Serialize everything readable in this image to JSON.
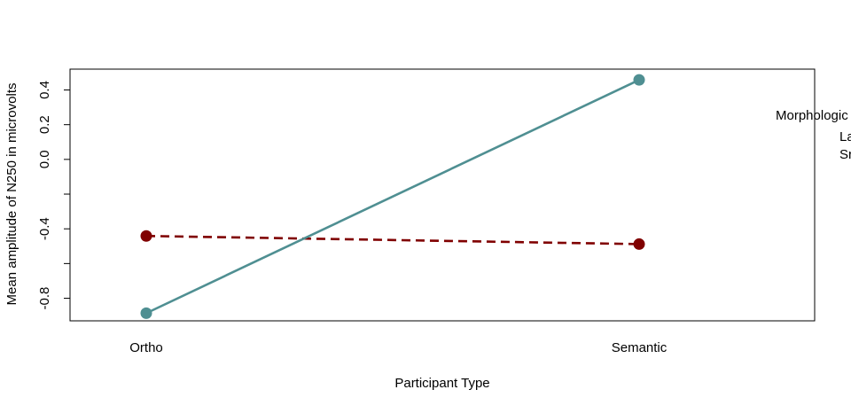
{
  "chart_data": {
    "type": "line",
    "title": "",
    "xlabel": "Participant Type",
    "ylabel": "Mean amplitude of N250 in microvolts",
    "categories": [
      "Ortho",
      "Semantic"
    ],
    "yticks": [
      0.4,
      0.2,
      0.0,
      -0.4,
      -0.8
    ],
    "ytick_labels": [
      "0.4",
      "0.2",
      "0.0",
      "-0.4",
      "-0.8"
    ],
    "ylim": [
      -0.93,
      0.52
    ],
    "grid": false,
    "legend": {
      "title": "Morphologic",
      "entries": [
        "La",
        "Sr"
      ],
      "position": "right, clipped"
    },
    "series": [
      {
        "values": [
          -0.441,
          -0.488
        ],
        "color": "#800000",
        "line": "dashed",
        "marker": "filled-circle"
      },
      {
        "values": [
          -0.886,
          0.458
        ],
        "color": "#4f8f92",
        "line": "solid",
        "marker": "filled-circle"
      }
    ]
  }
}
